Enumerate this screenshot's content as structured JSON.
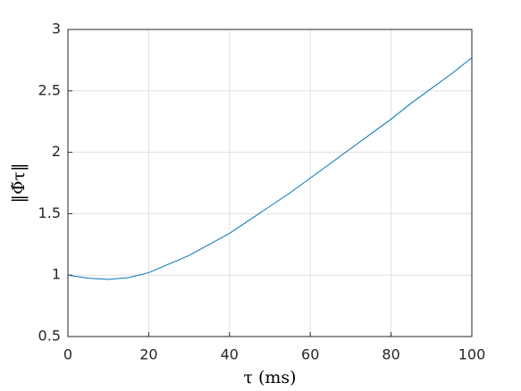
{
  "chart_data": {
    "type": "line",
    "x_label": "τ (ms)",
    "y_label": "‖Φ̃τ‖",
    "x": [
      0,
      5,
      10,
      15,
      20,
      25,
      30,
      35,
      40,
      45,
      50,
      55,
      60,
      65,
      70,
      75,
      80,
      85,
      90,
      95,
      100
    ],
    "series": [
      {
        "color": "#0072bd",
        "values": [
          1.0,
          0.975,
          0.965,
          0.98,
          1.02,
          1.09,
          1.16,
          1.25,
          1.34,
          1.45,
          1.56,
          1.67,
          1.79,
          1.91,
          2.03,
          2.15,
          2.27,
          2.4,
          2.52,
          2.64,
          2.77
        ]
      }
    ],
    "xlim": [
      0,
      100
    ],
    "xticks": [
      0,
      20,
      40,
      60,
      80,
      100
    ],
    "ylim": [
      0.5,
      3
    ],
    "yticks": [
      0.5,
      1,
      1.5,
      2,
      2.5,
      3
    ],
    "grid": true
  }
}
